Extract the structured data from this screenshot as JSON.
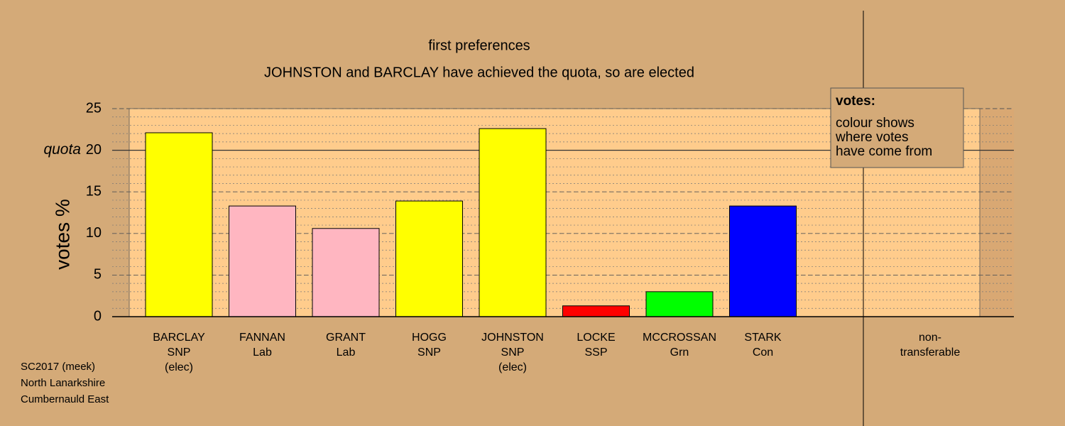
{
  "chart_data": {
    "type": "bar",
    "title": "first preferences",
    "subtitle": "JOHNSTON and BARCLAY have achieved the quota, so are elected",
    "y_label": "votes %",
    "labels": [
      [
        "BARCLAY",
        "SNP",
        "(elec)"
      ],
      [
        "FANNAN",
        "Lab"
      ],
      [
        "GRANT",
        "Lab"
      ],
      [
        "HOGG",
        "SNP"
      ],
      [
        "JOHNSTON",
        "SNP",
        "(elec)"
      ],
      [
        "LOCKE",
        "SSP"
      ],
      [
        "MCCROSSAN",
        "Grn"
      ],
      [
        "STARK",
        "Con"
      ],
      [
        "non-",
        "transferable"
      ]
    ],
    "values": [
      22.1,
      13.3,
      10.6,
      13.9,
      22.6,
      1.3,
      3.0,
      13.3,
      null
    ],
    "colors": [
      "#ffff00",
      "#ffb6c1",
      "#ffb6c1",
      "#ffff00",
      "#ffff00",
      "#ff0000",
      "#00ff00",
      "#0000ff",
      null
    ],
    "ylim": [
      0,
      25
    ],
    "yticks": [
      0,
      5,
      10,
      15,
      20,
      25
    ],
    "quota": {
      "value": 20,
      "label": "quota"
    },
    "grid": true,
    "legend": {
      "title": "votes:",
      "lines": [
        "colour shows",
        "where votes",
        "have come from"
      ]
    },
    "footer": [
      "SC2017 (meek)",
      "North Lanarkshire",
      "Cumbernauld East"
    ]
  }
}
